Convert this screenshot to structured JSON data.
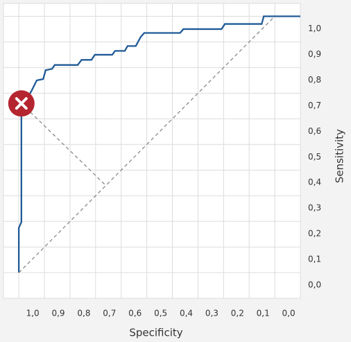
{
  "chart_data": {
    "type": "line",
    "xlabel": "Specificity",
    "ylabel": "Sensitivity",
    "xlim": [
      1.06,
      -0.1
    ],
    "ylim": [
      -0.1,
      1.05
    ],
    "xticks": [
      {
        "value": 1.0,
        "label": "1,0"
      },
      {
        "value": 0.9,
        "label": "0,9"
      },
      {
        "value": 0.8,
        "label": "0,8"
      },
      {
        "value": 0.7,
        "label": "0,7"
      },
      {
        "value": 0.6,
        "label": "0,6"
      },
      {
        "value": 0.5,
        "label": "0,5"
      },
      {
        "value": 0.4,
        "label": "0,4"
      },
      {
        "value": 0.3,
        "label": "0,3"
      },
      {
        "value": 0.2,
        "label": "0,2"
      },
      {
        "value": 0.1,
        "label": "0,1"
      },
      {
        "value": 0.0,
        "label": "0,0"
      }
    ],
    "yticks": [
      {
        "value": 0.0,
        "label": "0,0"
      },
      {
        "value": 0.1,
        "label": "0,1"
      },
      {
        "value": 0.2,
        "label": "0,2"
      },
      {
        "value": 0.3,
        "label": "0,3"
      },
      {
        "value": 0.4,
        "label": "0,4"
      },
      {
        "value": 0.5,
        "label": "0,5"
      },
      {
        "value": 0.6,
        "label": "0,6"
      },
      {
        "value": 0.7,
        "label": "0,7"
      },
      {
        "value": 0.8,
        "label": "0,8"
      },
      {
        "value": 0.9,
        "label": "0,9"
      },
      {
        "value": 1.0,
        "label": "1,0"
      }
    ],
    "grid": true,
    "series": [
      {
        "color": "#1f5a96",
        "x": [
          1.0,
          1.0,
          0.99,
          0.99,
          0.95,
          0.93,
          0.905,
          0.895,
          0.87,
          0.86,
          0.77,
          0.755,
          0.716,
          0.703,
          0.635,
          0.624,
          0.586,
          0.575,
          0.543,
          0.524,
          0.51,
          0.37,
          0.357,
          0.208,
          0.195,
          0.051,
          0.043,
          -0.1
        ],
        "values": [
          0.0,
          0.175,
          0.197,
          0.64,
          0.71,
          0.75,
          0.755,
          0.79,
          0.795,
          0.81,
          0.81,
          0.83,
          0.83,
          0.85,
          0.85,
          0.865,
          0.865,
          0.884,
          0.884,
          0.919,
          0.935,
          0.935,
          0.95,
          0.95,
          0.97,
          0.97,
          1.0,
          1.0
        ]
      },
      {
        "color": "#888888",
        "dashed": true,
        "x": [
          1.0,
          0.0
        ],
        "values": [
          0.0,
          1.0
        ]
      },
      {
        "color": "#888888",
        "dashed": true,
        "x": [
          0.99,
          0.66
        ],
        "values": [
          0.66,
          0.34
        ]
      }
    ],
    "marker": {
      "x": 0.99,
      "y": 0.66,
      "color": "#b5252f"
    }
  }
}
